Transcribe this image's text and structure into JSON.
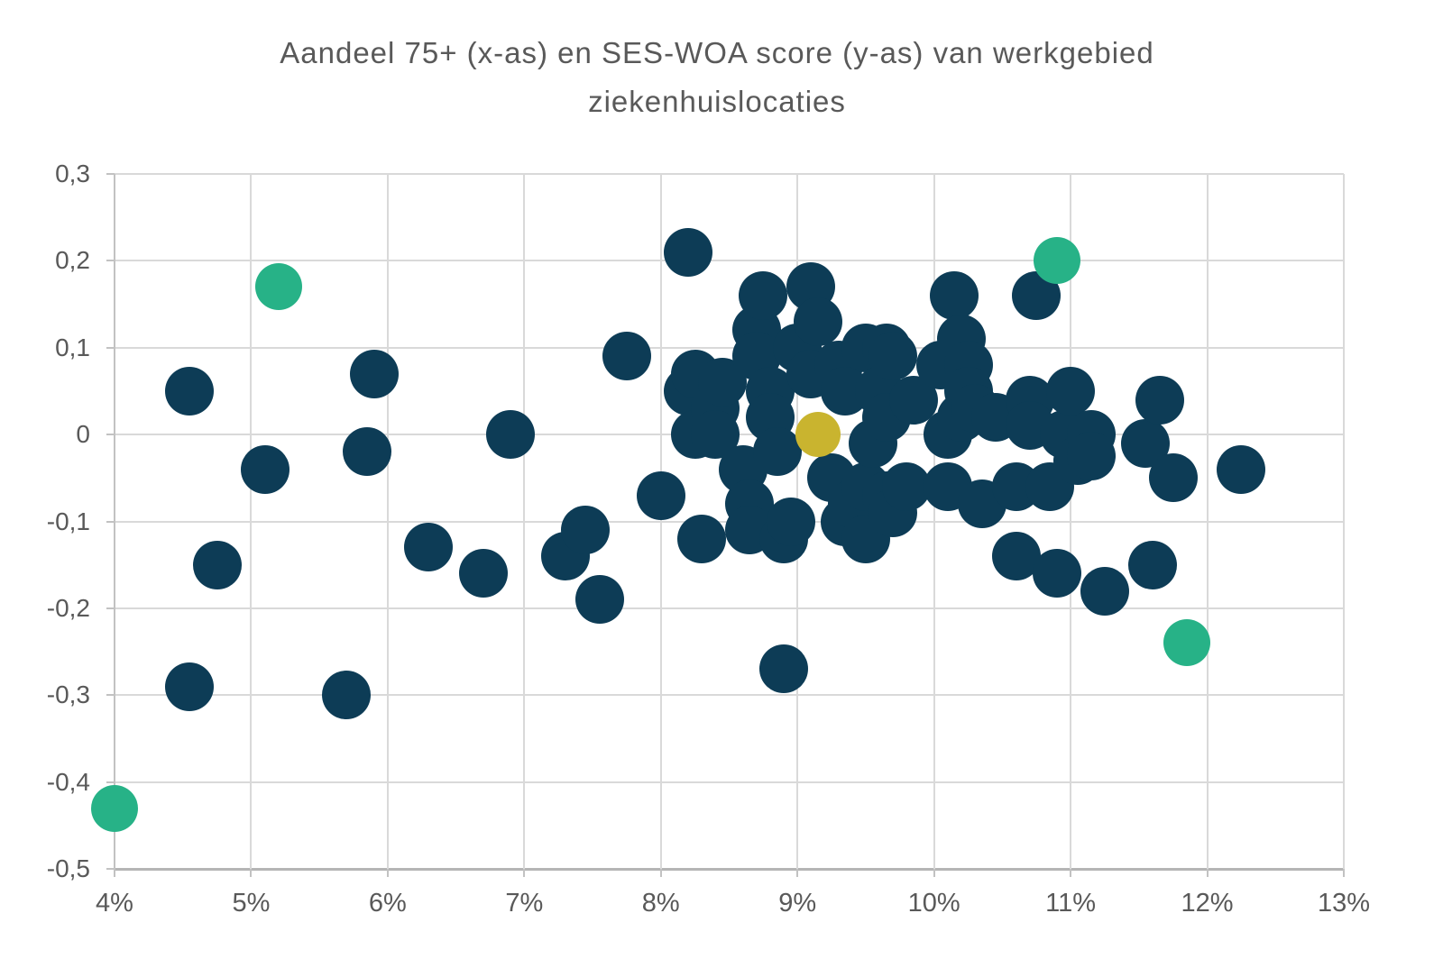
{
  "title": {
    "line1": "Aandeel 75+ (x-as) en SES-WOA score (y-as) van werkgebied",
    "line2": "ziekenhuislocaties"
  },
  "colors": {
    "navy": "#0d3c56",
    "green": "#27b287",
    "yellow": "#c9b42f",
    "gridline": "#d9d9d9",
    "axis": "#bdbdbd",
    "text": "#595959",
    "background": "#ffffff"
  },
  "x_axis": {
    "labels": [
      "4%",
      "5%",
      "6%",
      "7%",
      "8%",
      "9%",
      "10%",
      "11%",
      "12%",
      "13%"
    ]
  },
  "y_axis": {
    "labels": [
      "0,3",
      "0,2",
      "0,1",
      "0",
      "-0,1",
      "-0,2",
      "-0,3",
      "-0,4",
      "-0,5"
    ]
  },
  "chart_data": {
    "type": "scatter",
    "title": "Aandeel 75+ (x-as) en SES-WOA score (y-as) van werkgebied ziekenhuislocaties",
    "xlabel": "Aandeel 75+",
    "ylabel": "SES-WOA score",
    "xlim": [
      4,
      13
    ],
    "ylim": [
      -0.5,
      0.3
    ],
    "x_tick_step": 1,
    "y_tick_step": 0.1,
    "x_tick_format": "percent",
    "y_tick_format": "comma-decimal",
    "grid": true,
    "legend": "none",
    "series": [
      {
        "name": "ziekenhuislocaties",
        "color": "#0d3c56",
        "marker_radius": 27,
        "points": [
          [
            4.55,
            0.05
          ],
          [
            4.55,
            -0.29
          ],
          [
            4.75,
            -0.15
          ],
          [
            5.1,
            -0.04
          ],
          [
            5.7,
            -0.3
          ],
          [
            5.85,
            -0.02
          ],
          [
            5.9,
            0.07
          ],
          [
            6.3,
            -0.13
          ],
          [
            6.7,
            -0.16
          ],
          [
            6.9,
            0.0
          ],
          [
            7.3,
            -0.14
          ],
          [
            7.45,
            -0.11
          ],
          [
            7.55,
            -0.19
          ],
          [
            7.75,
            0.09
          ],
          [
            8.0,
            -0.07
          ],
          [
            8.2,
            0.21
          ],
          [
            8.2,
            0.05
          ],
          [
            8.25,
            0.07
          ],
          [
            8.25,
            0.0
          ],
          [
            8.3,
            -0.12
          ],
          [
            8.4,
            0.03
          ],
          [
            8.4,
            0.0
          ],
          [
            8.45,
            0.06
          ],
          [
            8.6,
            -0.04
          ],
          [
            8.65,
            -0.08
          ],
          [
            8.65,
            -0.11
          ],
          [
            8.7,
            0.12
          ],
          [
            8.7,
            0.09
          ],
          [
            8.75,
            0.16
          ],
          [
            8.8,
            0.05
          ],
          [
            8.8,
            0.02
          ],
          [
            8.85,
            -0.02
          ],
          [
            8.9,
            -0.12
          ],
          [
            8.9,
            -0.27
          ],
          [
            8.95,
            -0.1
          ],
          [
            9.0,
            0.1
          ],
          [
            9.1,
            0.17
          ],
          [
            9.1,
            0.07
          ],
          [
            9.15,
            0.13
          ],
          [
            9.25,
            -0.05
          ],
          [
            9.3,
            0.08
          ],
          [
            9.35,
            0.05
          ],
          [
            9.35,
            -0.1
          ],
          [
            9.4,
            -0.08
          ],
          [
            9.5,
            0.1
          ],
          [
            9.5,
            -0.06
          ],
          [
            9.5,
            -0.12
          ],
          [
            9.55,
            -0.01
          ],
          [
            9.6,
            0.05
          ],
          [
            9.65,
            0.1
          ],
          [
            9.65,
            0.02
          ],
          [
            9.65,
            -0.07
          ],
          [
            9.7,
            0.09
          ],
          [
            9.7,
            -0.09
          ],
          [
            9.8,
            -0.06
          ],
          [
            9.85,
            0.04
          ],
          [
            10.05,
            0.08
          ],
          [
            10.1,
            0.0
          ],
          [
            10.1,
            -0.06
          ],
          [
            10.15,
            0.16
          ],
          [
            10.2,
            0.11
          ],
          [
            10.2,
            0.02
          ],
          [
            10.25,
            0.08
          ],
          [
            10.25,
            0.05
          ],
          [
            10.3,
            0.03
          ],
          [
            10.35,
            -0.08
          ],
          [
            10.45,
            0.02
          ],
          [
            10.6,
            -0.06
          ],
          [
            10.6,
            -0.14
          ],
          [
            10.7,
            0.04
          ],
          [
            10.7,
            0.01
          ],
          [
            10.75,
            0.16
          ],
          [
            10.85,
            -0.06
          ],
          [
            10.9,
            -0.16
          ],
          [
            10.95,
            0.0
          ],
          [
            11.0,
            0.05
          ],
          [
            11.05,
            -0.03
          ],
          [
            11.15,
            0.0
          ],
          [
            11.15,
            -0.025
          ],
          [
            11.25,
            -0.18
          ],
          [
            11.55,
            -0.01
          ],
          [
            11.6,
            -0.15
          ],
          [
            11.65,
            0.04
          ],
          [
            11.75,
            -0.05
          ],
          [
            12.25,
            -0.04
          ]
        ]
      },
      {
        "name": "highlight-groen",
        "color": "#27b287",
        "marker_radius": 26,
        "points": [
          [
            4.0,
            -0.43
          ],
          [
            5.2,
            0.17
          ],
          [
            10.9,
            0.2
          ],
          [
            11.85,
            -0.24
          ]
        ]
      },
      {
        "name": "highlight-geel",
        "color": "#c9b42f",
        "marker_radius": 25,
        "points": [
          [
            9.15,
            0.0
          ]
        ]
      }
    ]
  }
}
